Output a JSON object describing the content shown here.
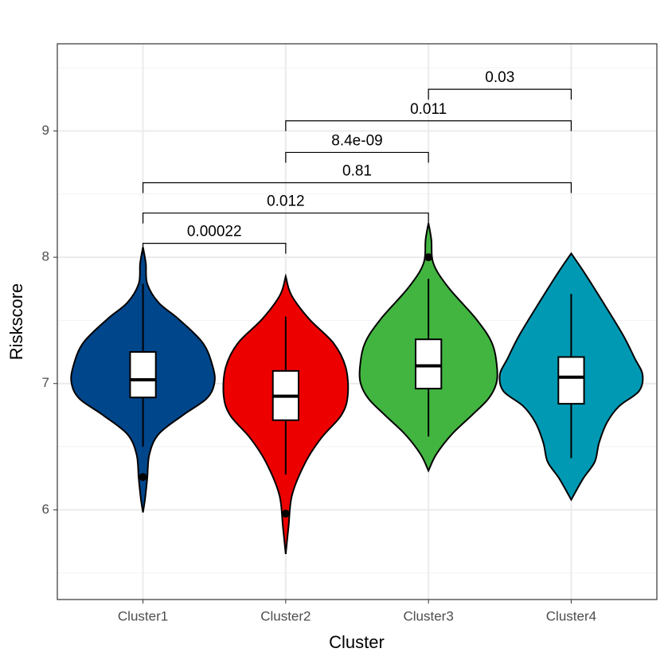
{
  "chart_data": {
    "type": "violin",
    "x_label": "Cluster",
    "y_label": "Riskscore",
    "categories": [
      "Cluster1",
      "Cluster2",
      "Cluster3",
      "Cluster4"
    ],
    "ylim": [
      5.29,
      9.69
    ],
    "yticks": [
      6,
      7,
      8,
      9
    ],
    "yminorticks": [
      5.5,
      6.5,
      7.5,
      8.5,
      9.5
    ],
    "grid": true,
    "series": [
      {
        "name": "Cluster1",
        "color": "#00468B",
        "density": {
          "y": [
            8.08,
            7.95,
            7.79,
            7.64,
            7.51,
            7.32,
            7.13,
            7.0,
            6.88,
            6.75,
            6.6,
            6.44,
            6.25,
            6.09,
            5.98
          ],
          "width": [
            0,
            0.04,
            0.06,
            0.22,
            0.5,
            0.84,
            0.98,
            1.0,
            0.89,
            0.56,
            0.22,
            0.09,
            0.06,
            0.03,
            0
          ]
        },
        "box": {
          "whisker_low": 6.5,
          "q1": 6.89,
          "median": 7.03,
          "q3": 7.25,
          "whisker_high": 7.79
        },
        "outliers": [
          6.26
        ]
      },
      {
        "name": "Cluster2",
        "color": "#ED0000",
        "density": {
          "y": [
            7.85,
            7.7,
            7.51,
            7.32,
            7.13,
            6.91,
            6.75,
            6.57,
            6.38,
            6.12,
            5.87,
            5.65
          ],
          "width": [
            0,
            0.08,
            0.33,
            0.67,
            0.84,
            0.87,
            0.78,
            0.5,
            0.28,
            0.09,
            0.04,
            0
          ]
        },
        "box": {
          "whisker_low": 6.28,
          "q1": 6.71,
          "median": 6.9,
          "q3": 7.1,
          "whisker_high": 7.53
        },
        "outliers": [
          5.97
        ]
      },
      {
        "name": "Cluster3",
        "color": "#42B540",
        "density": {
          "y": [
            8.27,
            8.14,
            7.95,
            7.76,
            7.51,
            7.32,
            7.13,
            7.0,
            6.88,
            6.75,
            6.6,
            6.44,
            6.31
          ],
          "width": [
            0,
            0.04,
            0.07,
            0.28,
            0.67,
            0.89,
            0.96,
            0.95,
            0.84,
            0.61,
            0.33,
            0.11,
            0
          ]
        },
        "box": {
          "whisker_low": 6.58,
          "q1": 6.96,
          "median": 7.14,
          "q3": 7.35,
          "whisker_high": 7.83
        },
        "outliers": [
          8.0
        ]
      },
      {
        "name": "Cluster4",
        "color": "#0099B4",
        "density": {
          "y": [
            8.03,
            7.89,
            7.64,
            7.38,
            7.2,
            7.07,
            6.94,
            6.82,
            6.69,
            6.53,
            6.38,
            6.25,
            6.08
          ],
          "width": [
            0,
            0.17,
            0.45,
            0.73,
            0.89,
            1.0,
            0.95,
            0.67,
            0.5,
            0.39,
            0.33,
            0.17,
            0
          ]
        },
        "box": {
          "whisker_low": 6.41,
          "q1": 6.84,
          "median": 7.05,
          "q3": 7.21,
          "whisker_high": 7.71
        },
        "outliers": []
      }
    ],
    "comparisons": [
      {
        "groups": [
          "Cluster1",
          "Cluster2"
        ],
        "label": "0.00022",
        "y": 8.11
      },
      {
        "groups": [
          "Cluster1",
          "Cluster3"
        ],
        "label": "0.012",
        "y": 8.35
      },
      {
        "groups": [
          "Cluster1",
          "Cluster4"
        ],
        "label": "0.81",
        "y": 8.59
      },
      {
        "groups": [
          "Cluster2",
          "Cluster3"
        ],
        "label": "8.4e-09",
        "y": 8.83
      },
      {
        "groups": [
          "Cluster2",
          "Cluster4"
        ],
        "label": "0.011",
        "y": 9.08
      },
      {
        "groups": [
          "Cluster3",
          "Cluster4"
        ],
        "label": "0.03",
        "y": 9.33
      }
    ]
  }
}
